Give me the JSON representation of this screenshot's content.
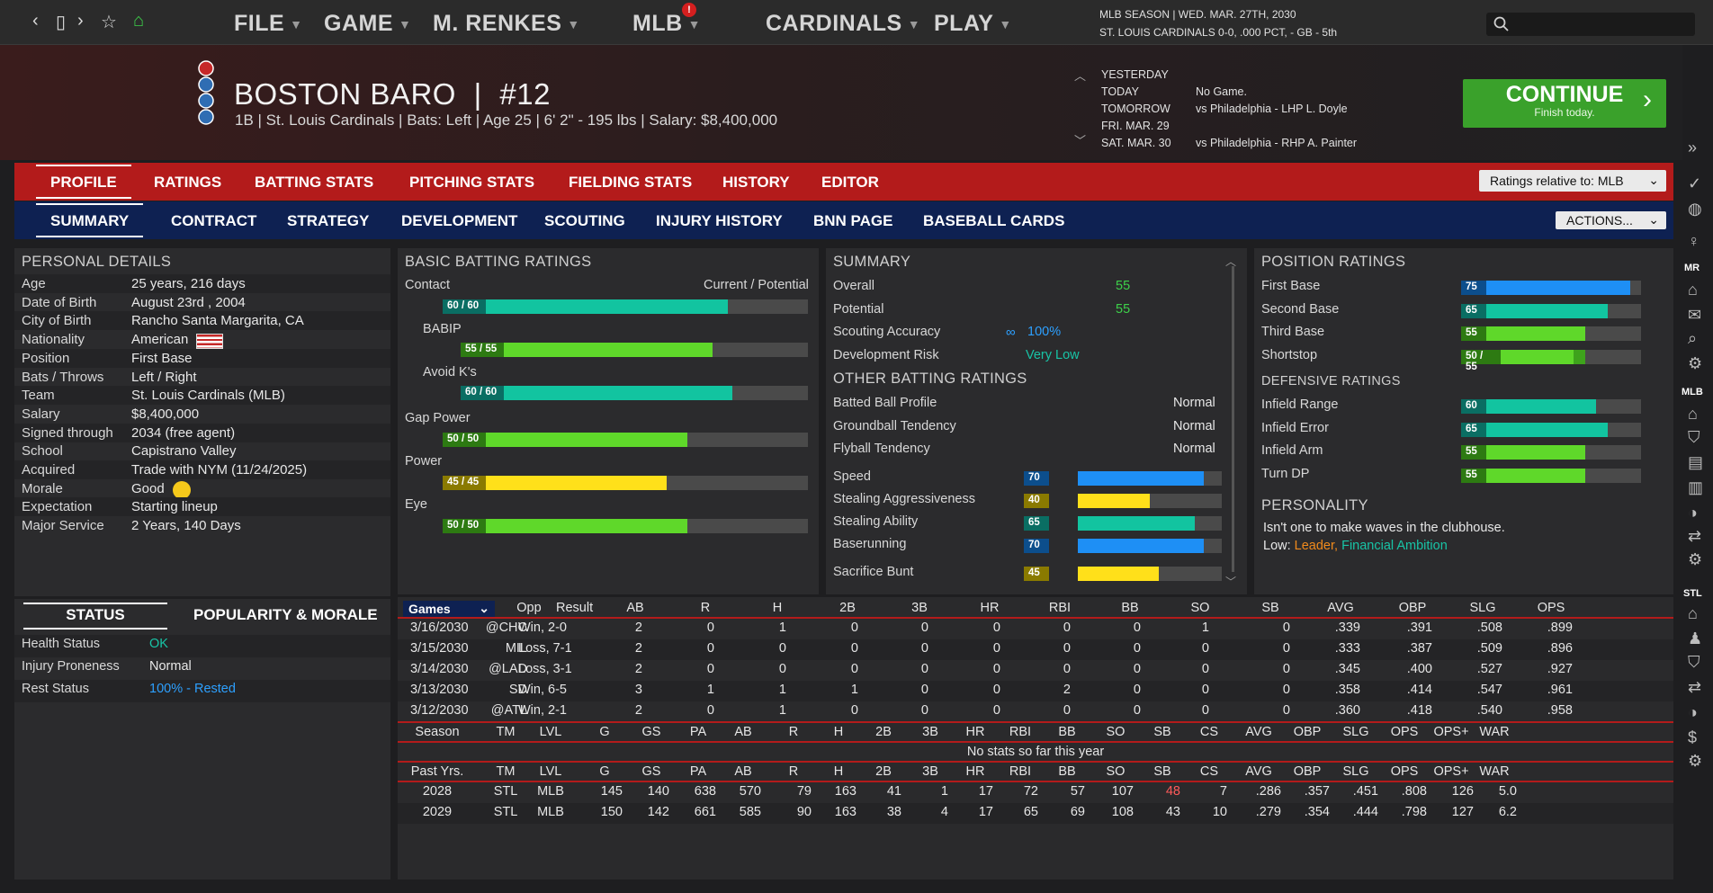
{
  "nav": {
    "back": "‹",
    "window": "▯",
    "forward": "›",
    "star": "☆",
    "home": "⌂"
  },
  "menu": [
    {
      "label": "FILE"
    },
    {
      "label": "GAME"
    },
    {
      "label": "M. RENKES"
    },
    {
      "label": "MLB"
    },
    {
      "label": "CARDINALS"
    },
    {
      "label": "PLAY"
    }
  ],
  "season": {
    "line1": "MLB SEASON  |  WED. MAR. 27TH, 2030",
    "line2": "ST. LOUIS CARDINALS  0-0, .000 PCT, - GB - 5th"
  },
  "player": {
    "name": "BOSTON BARO",
    "number_sep": "|",
    "number": "#12",
    "sub": "1B | St. Louis Cardinals  |  Bats: Left  |  Age 25  |  6' 2\" - 195 lbs  |  Salary: $8,400,000"
  },
  "schedule": [
    {
      "day": "YESTERDAY",
      "game": ""
    },
    {
      "day": "TODAY",
      "game": "No Game."
    },
    {
      "day": "TOMORROW",
      "game": "vs Philadelphia - LHP L. Doyle"
    },
    {
      "day": "FRI. MAR. 29",
      "game": ""
    },
    {
      "day": "SAT. MAR. 30",
      "game": "vs Philadelphia - RHP A. Painter"
    }
  ],
  "continue": {
    "label": "CONTINUE",
    "sub": "Finish today.",
    "arrow": "›"
  },
  "tabs1": [
    "PROFILE",
    "RATINGS",
    "BATTING STATS",
    "PITCHING STATS",
    "FIELDING STATS",
    "HISTORY",
    "EDITOR"
  ],
  "tabs2": [
    "SUMMARY",
    "CONTRACT",
    "STRATEGY",
    "DEVELOPMENT",
    "SCOUTING",
    "INJURY HISTORY",
    "BNN PAGE",
    "BASEBALL CARDS"
  ],
  "ratings_relative": "Ratings relative to: MLB",
  "actions": "ACTIONS...",
  "personal": {
    "title": "PERSONAL DETAILS",
    "rows": [
      {
        "label": "Age",
        "value": "25 years, 216 days"
      },
      {
        "label": "Date of Birth",
        "value": "August 23rd , 2004"
      },
      {
        "label": "City of Birth",
        "value": "Rancho Santa Margarita, CA"
      },
      {
        "label": "Nationality",
        "value": "American"
      },
      {
        "label": "Position",
        "value": "First Base"
      },
      {
        "label": "Bats / Throws",
        "value": "Left / Right"
      },
      {
        "label": "Team",
        "value": "St. Louis Cardinals (MLB)"
      },
      {
        "label": "Salary",
        "value": "$8,400,000"
      },
      {
        "label": "Signed through",
        "value": "2034 (free agent)"
      },
      {
        "label": "School",
        "value": "Capistrano Valley"
      },
      {
        "label": "Acquired",
        "value": "Trade with NYM (11/24/2025)"
      },
      {
        "label": "Morale",
        "value": "Good"
      },
      {
        "label": "Expectation",
        "value": "Starting lineup"
      },
      {
        "label": "Major Service",
        "value": "2 Years, 140 Days"
      }
    ]
  },
  "status": {
    "tab1": "STATUS",
    "tab2": "POPULARITY & MORALE",
    "rows": [
      {
        "label": "Health Status",
        "value": "OK"
      },
      {
        "label": "Injury Proneness",
        "value": "Normal"
      },
      {
        "label": "Rest Status",
        "value": "100% - Rested"
      }
    ]
  },
  "batting": {
    "title": "BASIC BATTING RATINGS",
    "legend": "Current / Potential",
    "rows": [
      {
        "label": "Contact",
        "badge": "60 / 60",
        "cur": 60,
        "color": "#12c4a0"
      },
      {
        "label": "BABIP",
        "badge": "55 / 55",
        "cur": 55,
        "color": "#5fd82a"
      },
      {
        "label": "Avoid K's",
        "badge": "60 / 60",
        "cur": 60,
        "color": "#12c4a0"
      },
      {
        "label": "Gap Power",
        "badge": "50 / 50",
        "cur": 50,
        "color": "#5fd82a"
      },
      {
        "label": "Power",
        "badge": "45 / 45",
        "cur": 45,
        "color": "#ffe01a"
      },
      {
        "label": "Eye",
        "badge": "50 / 50",
        "cur": 50,
        "color": "#5fd82a"
      }
    ]
  },
  "summary": {
    "title": "SUMMARY",
    "rows": [
      {
        "label": "Overall",
        "value": "55"
      },
      {
        "label": "Potential",
        "value": "55"
      },
      {
        "label": "Scouting Accuracy",
        "value": "100%"
      },
      {
        "label": "Development Risk",
        "value": "Very Low"
      }
    ],
    "other_title": "OTHER BATTING RATINGS",
    "other": [
      {
        "label": "Batted Ball Profile",
        "value": "Normal"
      },
      {
        "label": "Groundball Tendency",
        "value": "Normal"
      },
      {
        "label": "Flyball Tendency",
        "value": "Normal"
      }
    ],
    "speed": [
      {
        "label": "Speed",
        "badge": "70",
        "cur": 70,
        "color": "#1e8ff5"
      },
      {
        "label": "Stealing Aggressiveness",
        "badge": "40",
        "cur": 40,
        "color": "#ffe01a"
      },
      {
        "label": "Stealing Ability",
        "badge": "65",
        "cur": 65,
        "color": "#12c4a0"
      },
      {
        "label": "Baserunning",
        "badge": "70",
        "cur": 70,
        "color": "#1e8ff5"
      },
      {
        "label": "Sacrifice Bunt",
        "badge": "45",
        "cur": 45,
        "color": "#ffe01a"
      }
    ]
  },
  "position": {
    "title": "POSITION RATINGS",
    "rows": [
      {
        "label": "First Base",
        "badge": "75",
        "cur": 75,
        "pot": 75,
        "color": "#1e8ff5"
      },
      {
        "label": "Second Base",
        "badge": "65",
        "cur": 65,
        "pot": 65,
        "color": "#12c4a0"
      },
      {
        "label": "Third Base",
        "badge": "55",
        "cur": 55,
        "pot": 55,
        "color": "#5fd82a"
      },
      {
        "label": "Shortstop",
        "badge": "50 / 55",
        "cur": 50,
        "pot": 55,
        "color": "#5fd82a"
      }
    ],
    "def_title": "DEFENSIVE RATINGS",
    "def": [
      {
        "label": "Infield Range",
        "badge": "60",
        "cur": 60,
        "color": "#12c4a0"
      },
      {
        "label": "Infield Error",
        "badge": "65",
        "cur": 65,
        "color": "#12c4a0"
      },
      {
        "label": "Infield Arm",
        "badge": "55",
        "cur": 55,
        "color": "#5fd82a"
      },
      {
        "label": "Turn DP",
        "badge": "55",
        "cur": 55,
        "color": "#5fd82a"
      }
    ],
    "personality_title": "PERSONALITY",
    "personality_text": "Isn't one to make waves in the clubhouse.",
    "low_label": "Low:",
    "low_1": "Leader,",
    "low_2": "Financial Ambition"
  },
  "games": {
    "select": "Games",
    "headers": [
      "Opp",
      "Result",
      "AB",
      "R",
      "H",
      "2B",
      "3B",
      "HR",
      "RBI",
      "BB",
      "SO",
      "SB",
      "AVG",
      "OBP",
      "SLG",
      "OPS"
    ],
    "rows": [
      [
        "3/16/2030",
        "@CHC",
        "Win, 2-0",
        "2",
        "0",
        "1",
        "0",
        "0",
        "0",
        "0",
        "0",
        "1",
        "0",
        ".339",
        ".391",
        ".508",
        ".899"
      ],
      [
        "3/15/2030",
        "MIL",
        "Loss, 7-1",
        "2",
        "0",
        "0",
        "0",
        "0",
        "0",
        "0",
        "0",
        "0",
        "0",
        ".333",
        ".387",
        ".509",
        ".896"
      ],
      [
        "3/14/2030",
        "@LAD",
        "Loss, 3-1",
        "2",
        "0",
        "0",
        "0",
        "0",
        "0",
        "0",
        "0",
        "0",
        "0",
        ".345",
        ".400",
        ".527",
        ".927"
      ],
      [
        "3/13/2030",
        "SD",
        "Win, 6-5",
        "3",
        "1",
        "1",
        "1",
        "0",
        "0",
        "2",
        "0",
        "0",
        "0",
        ".358",
        ".414",
        ".547",
        ".961"
      ],
      [
        "3/12/2030",
        "@ATL",
        "Win, 2-1",
        "2",
        "0",
        "1",
        "0",
        "0",
        "0",
        "0",
        "0",
        "0",
        "0",
        ".360",
        ".418",
        ".540",
        ".958"
      ]
    ]
  },
  "season_table": {
    "headers": [
      "Season",
      "TM",
      "LVL",
      "G",
      "GS",
      "PA",
      "AB",
      "R",
      "H",
      "2B",
      "3B",
      "HR",
      "RBI",
      "BB",
      "SO",
      "SB",
      "CS",
      "AVG",
      "OBP",
      "SLG",
      "OPS",
      "OPS+",
      "WAR"
    ],
    "empty": "No stats so far this year"
  },
  "past_table": {
    "headers": [
      "Past Yrs.",
      "TM",
      "LVL",
      "G",
      "GS",
      "PA",
      "AB",
      "R",
      "H",
      "2B",
      "3B",
      "HR",
      "RBI",
      "BB",
      "SO",
      "SB",
      "CS",
      "AVG",
      "OBP",
      "SLG",
      "OPS",
      "OPS+",
      "WAR"
    ],
    "rows": [
      [
        "2028",
        "STL",
        "MLB",
        "145",
        "140",
        "638",
        "570",
        "79",
        "163",
        "41",
        "1",
        "17",
        "72",
        "57",
        "107",
        "48",
        "7",
        ".286",
        ".357",
        ".451",
        ".808",
        "126",
        "5.0"
      ],
      [
        "2029",
        "STL",
        "MLB",
        "150",
        "142",
        "661",
        "585",
        "90",
        "163",
        "38",
        "4",
        "17",
        "65",
        "69",
        "108",
        "43",
        "10",
        ".279",
        ".354",
        ".444",
        ".798",
        "127",
        "6.2"
      ]
    ]
  },
  "sidebar": {
    "mr": "MR",
    "mlb": "MLB",
    "stl": "STL"
  }
}
